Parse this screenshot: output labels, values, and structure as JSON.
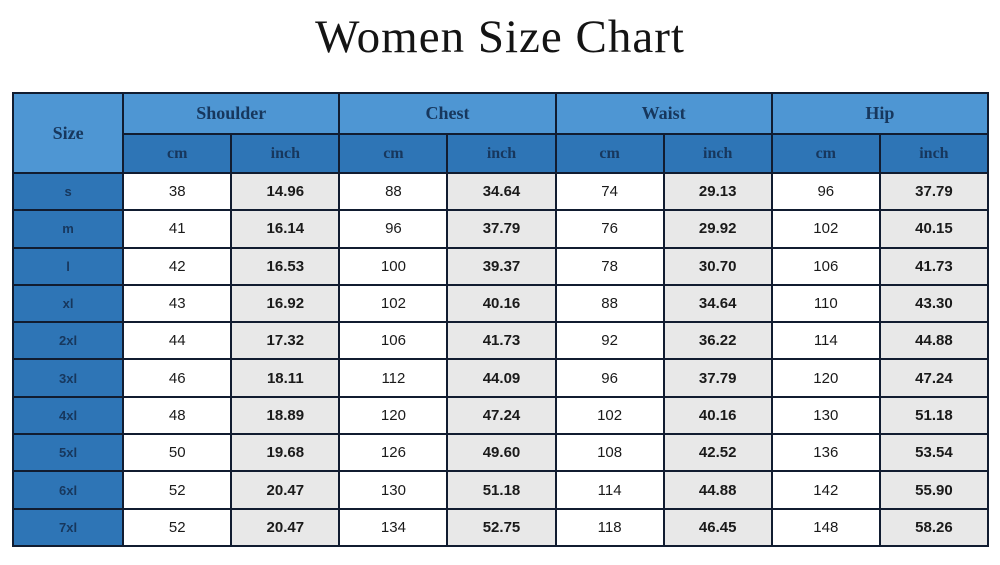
{
  "title": "Women Size Chart",
  "table": {
    "size_header": "Size",
    "groups": [
      "Shoulder",
      "Chest",
      "Waist",
      "Hip"
    ],
    "unit_headers": [
      "cm",
      "inch"
    ],
    "rows": [
      {
        "size": "s",
        "values": [
          "38",
          "14.96",
          "88",
          "34.64",
          "74",
          "29.13",
          "96",
          "37.79"
        ]
      },
      {
        "size": "m",
        "values": [
          "41",
          "16.14",
          "96",
          "37.79",
          "76",
          "29.92",
          "102",
          "40.15"
        ]
      },
      {
        "size": "l",
        "values": [
          "42",
          "16.53",
          "100",
          "39.37",
          "78",
          "30.70",
          "106",
          "41.73"
        ]
      },
      {
        "size": "xl",
        "values": [
          "43",
          "16.92",
          "102",
          "40.16",
          "88",
          "34.64",
          "110",
          "43.30"
        ]
      },
      {
        "size": "2xl",
        "values": [
          "44",
          "17.32",
          "106",
          "41.73",
          "92",
          "36.22",
          "114",
          "44.88"
        ]
      },
      {
        "size": "3xl",
        "values": [
          "46",
          "18.11",
          "112",
          "44.09",
          "96",
          "37.79",
          "120",
          "47.24"
        ]
      },
      {
        "size": "4xl",
        "values": [
          "48",
          "18.89",
          "120",
          "47.24",
          "102",
          "40.16",
          "130",
          "51.18"
        ]
      },
      {
        "size": "5xl",
        "values": [
          "50",
          "19.68",
          "126",
          "49.60",
          "108",
          "42.52",
          "136",
          "53.54"
        ]
      },
      {
        "size": "6xl",
        "values": [
          "52",
          "20.47",
          "130",
          "51.18",
          "114",
          "44.88",
          "142",
          "55.90"
        ]
      },
      {
        "size": "7xl",
        "values": [
          "52",
          "20.47",
          "134",
          "52.75",
          "118",
          "46.45",
          "148",
          "58.26"
        ]
      }
    ]
  },
  "colors": {
    "group_header_bg": "#4e96d3",
    "unit_header_bg": "#2e75b6",
    "size_cell_bg": "#2e75b6",
    "header_text": "#17375d",
    "cm_cell_bg": "#ffffff",
    "inch_cell_bg": "#e8e8e8",
    "data_text": "#1a1a1a",
    "border": "#111c30"
  },
  "chart_data": {
    "type": "table",
    "title": "Women Size Chart",
    "columns": [
      "Size",
      "Shoulder cm",
      "Shoulder inch",
      "Chest cm",
      "Chest inch",
      "Waist cm",
      "Waist inch",
      "Hip cm",
      "Hip inch"
    ],
    "rows": [
      [
        "s",
        38,
        14.96,
        88,
        34.64,
        74,
        29.13,
        96,
        37.79
      ],
      [
        "m",
        41,
        16.14,
        96,
        37.79,
        76,
        29.92,
        102,
        40.15
      ],
      [
        "l",
        42,
        16.53,
        100,
        39.37,
        78,
        30.7,
        106,
        41.73
      ],
      [
        "xl",
        43,
        16.92,
        102,
        40.16,
        88,
        34.64,
        110,
        43.3
      ],
      [
        "2xl",
        44,
        17.32,
        106,
        41.73,
        92,
        36.22,
        114,
        44.88
      ],
      [
        "3xl",
        46,
        18.11,
        112,
        44.09,
        96,
        37.79,
        120,
        47.24
      ],
      [
        "4xl",
        48,
        18.89,
        120,
        47.24,
        102,
        40.16,
        130,
        51.18
      ],
      [
        "5xl",
        50,
        19.68,
        126,
        49.6,
        108,
        42.52,
        136,
        53.54
      ],
      [
        "6xl",
        52,
        20.47,
        130,
        51.18,
        114,
        44.88,
        142,
        55.9
      ],
      [
        "7xl",
        52,
        20.47,
        134,
        52.75,
        118,
        46.45,
        148,
        58.26
      ]
    ]
  }
}
